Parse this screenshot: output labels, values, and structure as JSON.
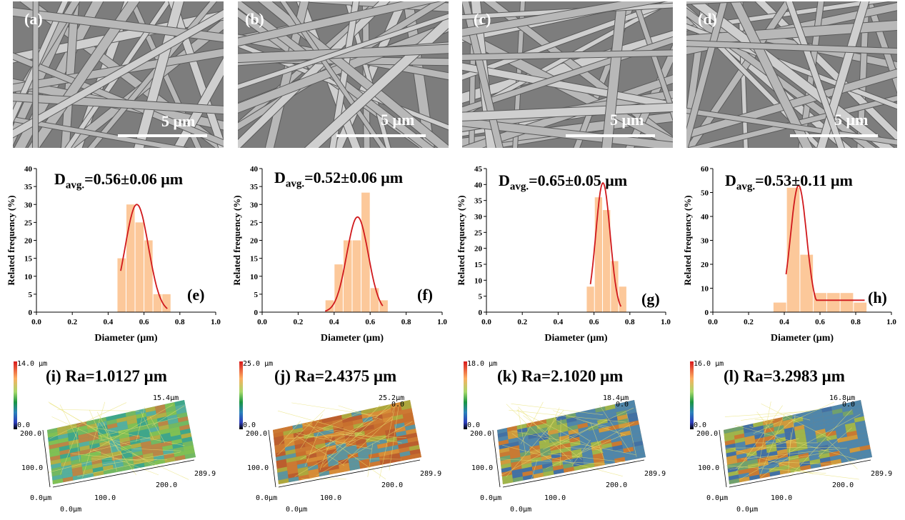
{
  "sem_panels": [
    {
      "label": "(a)",
      "scale": "5 μm"
    },
    {
      "label": "(b)",
      "scale": "5 μm"
    },
    {
      "label": "(c)",
      "scale": "5 μm"
    },
    {
      "label": "(d)",
      "scale": "5 μm"
    }
  ],
  "chart_data": [
    {
      "type": "bar",
      "panel": "(e)",
      "annotation": "D",
      "annotation_sub": "avg.",
      "annotation_value": "=0.56±0.06 μm",
      "xlabel": "Diameter (μm)",
      "ylabel": "Related frequency (%)",
      "xlim": [
        0,
        1.0
      ],
      "ylim": [
        0,
        40
      ],
      "xticks": [
        "0.0",
        "0.2",
        "0.4",
        "0.6",
        "0.8",
        "1.0"
      ],
      "yticks": [
        "0",
        "5",
        "10",
        "15",
        "20",
        "25",
        "30",
        "35",
        "40"
      ],
      "bin_width": 0.05,
      "bins": [
        0.475,
        0.525,
        0.575,
        0.625,
        0.675,
        0.725
      ],
      "values": [
        15,
        30,
        25,
        20,
        5,
        5
      ],
      "fit": {
        "mean": 0.56,
        "sd": 0.065,
        "peak": 30,
        "from": 0.47,
        "to": 0.73
      }
    },
    {
      "type": "bar",
      "panel": "(f)",
      "annotation": "D",
      "annotation_sub": "avg.",
      "annotation_value": "=0.52±0.06 μm",
      "xlabel": "Diameter (μm)",
      "ylabel": "Related frequency (%)",
      "xlim": [
        0,
        1.0
      ],
      "ylim": [
        0,
        40
      ],
      "xticks": [
        "0.0",
        "0.2",
        "0.4",
        "0.6",
        "0.8",
        "1.0"
      ],
      "yticks": [
        "0",
        "5",
        "10",
        "15",
        "20",
        "25",
        "30",
        "35",
        "40"
      ],
      "bin_width": 0.05,
      "bins": [
        0.375,
        0.425,
        0.475,
        0.525,
        0.575,
        0.625,
        0.675
      ],
      "values": [
        3.3,
        13.3,
        20,
        20,
        33.3,
        6.7,
        3.3
      ],
      "fit": {
        "mean": 0.53,
        "sd": 0.06,
        "peak": 26.5,
        "from": 0.35,
        "to": 0.67
      }
    },
    {
      "type": "bar",
      "panel": "(g)",
      "annotation": "D",
      "annotation_sub": "avg.",
      "annotation_value": "=0.65±0.05 μm",
      "xlabel": "Diameter (μm)",
      "ylabel": "Related frequency (%)",
      "xlim": [
        0,
        1.0
      ],
      "ylim": [
        0,
        45
      ],
      "xticks": [
        "0.0",
        "0.2",
        "0.4",
        "0.6",
        "0.8",
        "1.0"
      ],
      "yticks": [
        "0",
        "5",
        "10",
        "15",
        "20",
        "25",
        "30",
        "35",
        "40",
        "45"
      ],
      "bin_width": 0.045,
      "bins": [
        0.58,
        0.625,
        0.67,
        0.715,
        0.76
      ],
      "values": [
        8,
        36,
        32,
        16,
        8
      ],
      "fit": {
        "mean": 0.65,
        "sd": 0.04,
        "peak": 40.5,
        "from": 0.58,
        "to": 0.75
      }
    },
    {
      "type": "bar",
      "panel": "(h)",
      "annotation": "D",
      "annotation_sub": "avg.",
      "annotation_value": "=0.53±0.11 μm",
      "xlabel": "Diameter (μm)",
      "ylabel": "Related frequency (%)",
      "xlim": [
        0,
        1.0
      ],
      "ylim": [
        0,
        60
      ],
      "xticks": [
        "0.0",
        "0.2",
        "0.4",
        "0.6",
        "0.8",
        "1.0"
      ],
      "yticks": [
        "0",
        "10",
        "20",
        "30",
        "40",
        "50",
        "60"
      ],
      "bin_width": 0.075,
      "bins": [
        0.375,
        0.45,
        0.525,
        0.6,
        0.675,
        0.75,
        0.825
      ],
      "values": [
        4,
        52,
        24,
        8,
        8,
        8,
        4
      ],
      "fit": {
        "mean": 0.48,
        "sd": 0.045,
        "peak": 53,
        "from": 0.41,
        "to": 0.85,
        "tail": 5
      }
    }
  ],
  "surface_panels": [
    {
      "title": "(i) Ra=1.0127 μm",
      "cb_max": "14.0 μm",
      "cb_min": "0.0",
      "z_top": "15.4μm",
      "z_zero": "",
      "y_max": "200.0",
      "y_mid": "100.0",
      "origin": "0.0μm",
      "origin_x": "0.0μm",
      "x_mid": "100.0",
      "x_2": "200.0",
      "x_max": "289.9",
      "surface_tone": "mixed"
    },
    {
      "title": "(j) Ra=2.4375 μm",
      "cb_max": "25.0 μm",
      "cb_min": "0.0",
      "z_top": "25.2μm",
      "z_zero": "0.0",
      "y_max": "200.0",
      "y_mid": "100.0",
      "origin": "0.0μm",
      "origin_x": "0.0μm",
      "x_mid": "100.0",
      "x_2": "200.0",
      "x_max": "289.9",
      "surface_tone": "warm"
    },
    {
      "title": "(k) Ra=2.1020 μm",
      "cb_max": "18.0 μm",
      "cb_min": "0.0",
      "z_top": "18.4μm",
      "z_zero": "0.0",
      "y_max": "200.0",
      "y_mid": "100.0",
      "origin": "0.0μm",
      "origin_x": "0.0μm",
      "x_mid": "100.0",
      "x_2": "200.0",
      "x_max": "289.9",
      "surface_tone": "warm-blue"
    },
    {
      "title": "(l) Ra=3.2983 μm",
      "cb_max": "16.0 μm",
      "cb_min": "0.0",
      "z_top": "16.8μm",
      "z_zero": "0.0",
      "y_max": "200.0",
      "y_mid": "100.0",
      "origin": "0.0μm",
      "origin_x": "0.0μm",
      "x_mid": "100.0",
      "x_2": "200.0",
      "x_max": "289.9",
      "surface_tone": "warm-blue"
    }
  ],
  "colors": {
    "bar": "#fcc89a",
    "fit": "#d0181c",
    "axis": "#000000"
  }
}
